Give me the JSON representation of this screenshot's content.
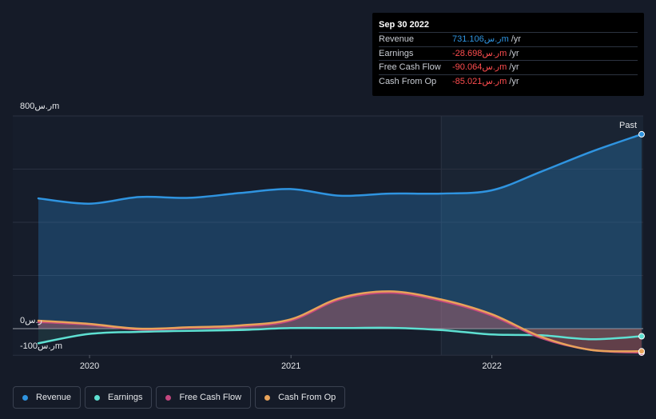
{
  "tooltip": {
    "date": "Sep 30 2022",
    "rows": [
      {
        "label": "Revenue",
        "value": "731.106ر.سm",
        "suffix": "/yr",
        "color": "#2f94e0"
      },
      {
        "label": "Earnings",
        "value": "-28.698ر.سm",
        "suffix": "/yr",
        "color": "#ff4d4f"
      },
      {
        "label": "Free Cash Flow",
        "value": "-90.064ر.سm",
        "suffix": "/yr",
        "color": "#ff4d4f"
      },
      {
        "label": "Cash From Op",
        "value": "-85.021ر.سm",
        "suffix": "/yr",
        "color": "#ff4d4f"
      }
    ]
  },
  "legend": [
    {
      "label": "Revenue",
      "color": "#2f94e0"
    },
    {
      "label": "Earnings",
      "color": "#5ee0d2"
    },
    {
      "label": "Free Cash Flow",
      "color": "#c4477f"
    },
    {
      "label": "Cash From Op",
      "color": "#e8a35a"
    }
  ],
  "chart_data": {
    "type": "area",
    "x": [
      "2019-09-30",
      "2019-12-31",
      "2020-03-31",
      "2020-06-30",
      "2020-09-30",
      "2020-12-31",
      "2021-03-31",
      "2021-06-30",
      "2021-09-30",
      "2021-12-31",
      "2022-03-31",
      "2022-06-30",
      "2022-09-30"
    ],
    "series": [
      {
        "name": "Revenue",
        "color": "#2f94e0",
        "values": [
          490,
          470,
          495,
          492,
          510,
          525,
          500,
          508,
          508,
          520,
          590,
          665,
          731.106
        ]
      },
      {
        "name": "Earnings",
        "color": "#5ee0d2",
        "values": [
          -55,
          -20,
          -12,
          -8,
          -5,
          2,
          2,
          3,
          -5,
          -22,
          -25,
          -40,
          -28.698
        ]
      },
      {
        "name": "Free Cash Flow",
        "color": "#c4477f",
        "values": [
          25,
          15,
          -3,
          2,
          8,
          30,
          110,
          135,
          105,
          50,
          -35,
          -80,
          -90.064
        ]
      },
      {
        "name": "Cash From Op",
        "color": "#e8a35a",
        "values": [
          30,
          18,
          0,
          5,
          12,
          35,
          115,
          140,
          110,
          55,
          -30,
          -80,
          -85.021
        ]
      }
    ],
    "ylabel_top": "800ر.سm",
    "ylabel_zero": "0ر.س",
    "ylabel_bottom": "-100ر.سm",
    "ylim": [
      -100,
      800
    ],
    "xticks": [
      {
        "label": "2020",
        "date": "2020-01-01"
      },
      {
        "label": "2021",
        "date": "2021-01-01"
      },
      {
        "label": "2022",
        "date": "2022-01-01"
      }
    ],
    "x_range": [
      "2019-09-30",
      "2022-09-30"
    ],
    "past_start": "2021-10-01",
    "past_label": "Past",
    "grid": true,
    "legend_position": "bottom-left"
  }
}
